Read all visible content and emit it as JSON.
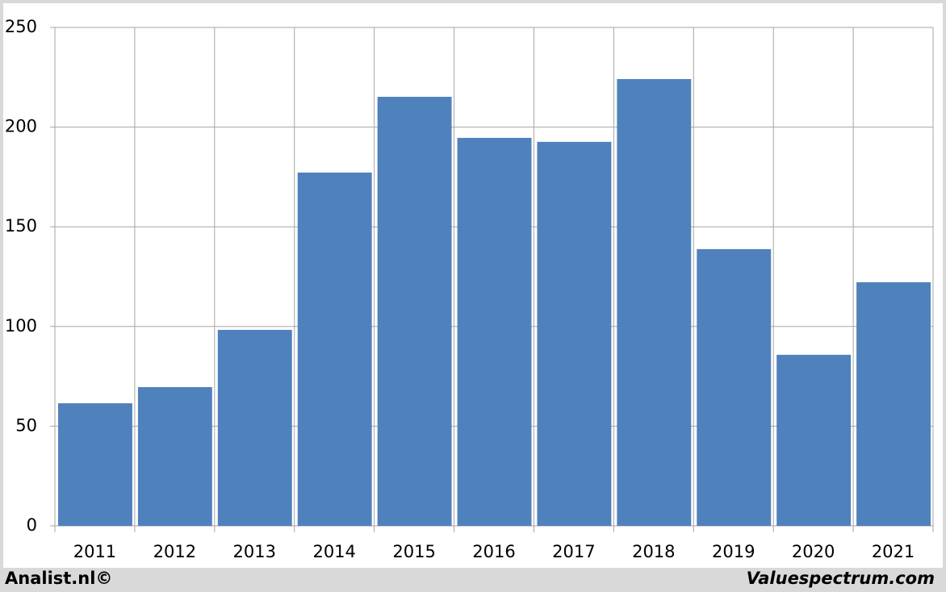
{
  "chart_data": {
    "type": "bar",
    "categories": [
      "2011",
      "2012",
      "2013",
      "2014",
      "2015",
      "2016",
      "2017",
      "2018",
      "2019",
      "2020",
      "2021"
    ],
    "values": [
      61.5,
      69.6,
      98.3,
      177.2,
      215.2,
      194.6,
      192.6,
      224.1,
      138.8,
      85.8,
      122.2
    ],
    "color": "#4f81bd",
    "ylim": [
      0,
      250
    ],
    "yticks": [
      0,
      50,
      100,
      150,
      200,
      250
    ],
    "grid": true,
    "credits": [
      "Analist.nl©",
      "Valuespectrum.com"
    ]
  }
}
